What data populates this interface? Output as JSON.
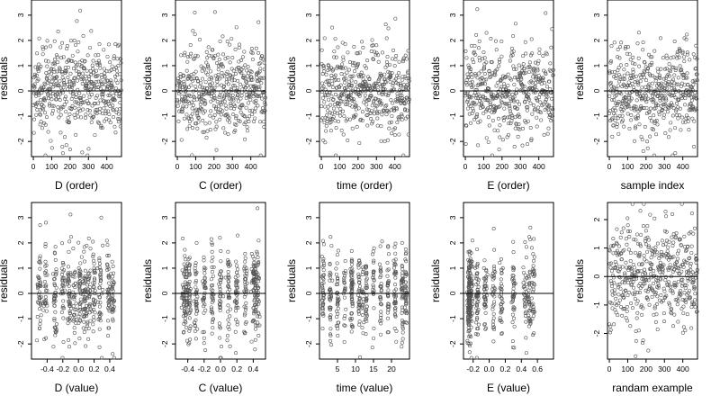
{
  "chart_data": [
    {
      "type": "scatter",
      "xlabel": "D (order)",
      "ylabel": "residuals",
      "xlim": [
        -10,
        480
      ],
      "ylim": [
        -2.6,
        3.6
      ],
      "xticks": [
        0,
        100,
        200,
        300,
        400
      ],
      "yticks": [
        -2,
        -1,
        0,
        1,
        2,
        3
      ],
      "ref_line_y": 0,
      "point_color": "#555555",
      "gen": {
        "mode": "order",
        "n": 480
      }
    },
    {
      "type": "scatter",
      "xlabel": "C (order)",
      "ylabel": "residuals",
      "xlim": [
        -10,
        480
      ],
      "ylim": [
        -2.6,
        3.6
      ],
      "xticks": [
        0,
        100,
        200,
        300,
        400
      ],
      "yticks": [
        -2,
        -1,
        0,
        1,
        2,
        3
      ],
      "ref_line_y": 0,
      "point_color": "#555555",
      "gen": {
        "mode": "order",
        "n": 480
      }
    },
    {
      "type": "scatter",
      "xlabel": "time (order)",
      "ylabel": "residuals",
      "xlim": [
        -10,
        480
      ],
      "ylim": [
        -2.6,
        3.6
      ],
      "xticks": [
        0,
        100,
        200,
        300,
        400
      ],
      "yticks": [
        -2,
        -1,
        0,
        1,
        2,
        3
      ],
      "ref_line_y": 0,
      "point_color": "#555555",
      "gen": {
        "mode": "order",
        "n": 480
      }
    },
    {
      "type": "scatter",
      "xlabel": "E (order)",
      "ylabel": "residuals",
      "xlim": [
        -10,
        480
      ],
      "ylim": [
        -2.6,
        3.6
      ],
      "xticks": [
        0,
        100,
        200,
        300,
        400
      ],
      "yticks": [
        -2,
        -1,
        0,
        1,
        2,
        3
      ],
      "ref_line_y": 0,
      "point_color": "#555555",
      "gen": {
        "mode": "order",
        "n": 480
      }
    },
    {
      "type": "scatter",
      "xlabel": "sample index",
      "ylabel": "residuals",
      "xlim": [
        -10,
        480
      ],
      "ylim": [
        -2.6,
        3.6
      ],
      "xticks": [
        0,
        100,
        200,
        300,
        400
      ],
      "yticks": [
        -2,
        -1,
        0,
        1,
        2,
        3
      ],
      "ref_line_y": 0,
      "point_color": "#555555",
      "gen": {
        "mode": "order",
        "n": 480
      }
    },
    {
      "type": "scatter",
      "xlabel": "D (value)",
      "ylabel": "residuals",
      "xlim": [
        -0.6,
        0.55
      ],
      "ylim": [
        -2.6,
        3.6
      ],
      "xticks": [
        -0.4,
        -0.2,
        0.0,
        0.2,
        0.4
      ],
      "yticks": [
        -2,
        -1,
        0,
        1,
        2,
        3
      ],
      "ref_line_y": 0,
      "point_color": "#555555",
      "gen": {
        "mode": "value",
        "n": 480,
        "clusters": [
          -0.5,
          -0.42,
          -0.3,
          -0.2,
          -0.12,
          -0.05,
          0.02,
          0.08,
          0.13,
          0.2,
          0.28,
          0.38,
          0.44
        ],
        "jitter": 0.012
      }
    },
    {
      "type": "scatter",
      "xlabel": "C (value)",
      "ylabel": "residuals",
      "xlim": [
        -0.55,
        0.55
      ],
      "ylim": [
        -2.6,
        3.6
      ],
      "xticks": [
        -0.4,
        -0.2,
        0.0,
        0.2,
        0.4
      ],
      "yticks": [
        -2,
        -1,
        0,
        1,
        2,
        3
      ],
      "ref_line_y": 0,
      "point_color": "#555555",
      "gen": {
        "mode": "value",
        "n": 480,
        "clusters": [
          -0.45,
          -0.42,
          -0.38,
          -0.3,
          -0.2,
          -0.1,
          0.0,
          0.1,
          0.2,
          0.3,
          0.4,
          0.43,
          0.46
        ],
        "jitter": 0.01
      }
    },
    {
      "type": "scatter",
      "xlabel": "time (value)",
      "ylabel": "residuals",
      "xlim": [
        0,
        25
      ],
      "ylim": [
        -2.6,
        3.6
      ],
      "xticks": [
        5,
        10,
        15,
        20
      ],
      "yticks": [
        -2,
        -1,
        0,
        1,
        2,
        3
      ],
      "ref_line_y": 0,
      "point_color": "#555555",
      "gen": {
        "mode": "value",
        "n": 480,
        "clusters": [
          1,
          3,
          5,
          7,
          9,
          11,
          12,
          13,
          15,
          17,
          19,
          21,
          23,
          24
        ],
        "jitter": 0.15
      }
    },
    {
      "type": "scatter",
      "xlabel": "E (value)",
      "ylabel": "residuals",
      "xlim": [
        -0.32,
        0.8
      ],
      "ylim": [
        -2.6,
        3.6
      ],
      "xticks": [
        -0.2,
        0.0,
        0.2,
        0.4,
        0.6
      ],
      "yticks": [
        -2,
        -1,
        0,
        1,
        2,
        3
      ],
      "ref_line_y": 0,
      "point_color": "#555555",
      "gen": {
        "mode": "value",
        "n": 480,
        "clusters": [
          -0.25,
          -0.25,
          -0.25,
          -0.24,
          -0.22,
          -0.15,
          -0.05,
          0.05,
          0.15,
          0.3,
          0.45,
          0.5,
          0.55
        ],
        "jitter": 0.01
      }
    },
    {
      "type": "scatter",
      "xlabel": "randam example",
      "ylabel": "residuals",
      "xlim": [
        -10,
        480
      ],
      "ylim": [
        -2.9,
        2.6
      ],
      "xticks": [
        0,
        100,
        200,
        300,
        400
      ],
      "yticks": [
        -2,
        -1,
        0,
        1,
        2
      ],
      "ref_line_y": 0,
      "point_color": "#555555",
      "gen": {
        "mode": "order",
        "n": 480
      }
    }
  ]
}
